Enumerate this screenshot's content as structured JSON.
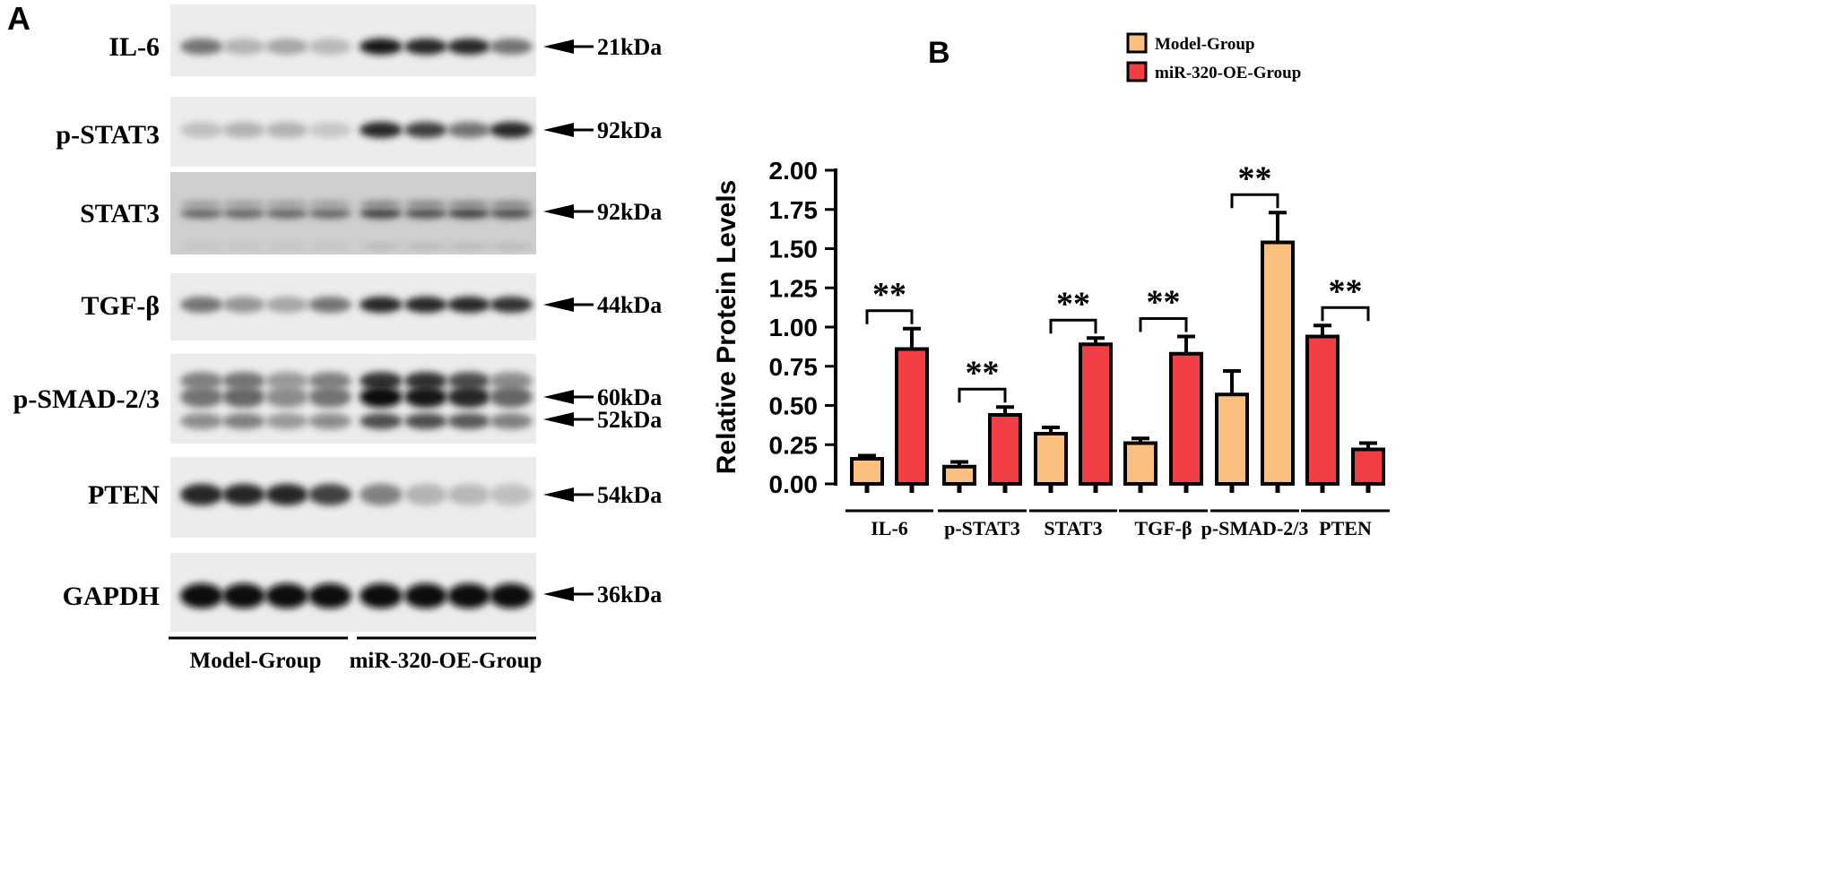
{
  "panel_a": {
    "label": "A",
    "blots": [
      {
        "name": "IL-6",
        "markers": [
          "21kDa"
        ]
      },
      {
        "name": "p-STAT3",
        "markers": [
          "92kDa"
        ]
      },
      {
        "name": "STAT3",
        "markers": [
          "92kDa"
        ]
      },
      {
        "name": "TGF-β",
        "markers": [
          "44kDa"
        ]
      },
      {
        "name": "p-SMAD-2/3",
        "markers": [
          "60kDa",
          "52kDa"
        ]
      },
      {
        "name": "PTEN",
        "markers": [
          "54kDa"
        ]
      },
      {
        "name": "GAPDH",
        "markers": [
          "36kDa"
        ]
      }
    ],
    "groups": [
      "Model-Group",
      "miR-320-OE-Group"
    ]
  },
  "panel_b": {
    "label": "B"
  },
  "chart_data": {
    "type": "bar",
    "title": "",
    "xlabel": "",
    "ylabel": "Relative Protein Levels",
    "ylim": [
      0,
      2.0
    ],
    "yticks": [
      "0.00",
      "0.25",
      "0.50",
      "0.75",
      "1.00",
      "1.25",
      "1.50",
      "1.75",
      "2.00"
    ],
    "grid": false,
    "legend_position": "top-right",
    "series_legend": [
      {
        "name": "Model-Group",
        "color": "#FBBF7F"
      },
      {
        "name": "miR-320-OE-Group",
        "color": "#F13F45"
      }
    ],
    "groups": [
      {
        "label": "IL-6",
        "bars": [
          {
            "series": "Model-Group",
            "value": 0.16,
            "error": 0.02
          },
          {
            "series": "miR-320-OE-Group",
            "value": 0.86,
            "error": 0.13
          }
        ],
        "significance": "**"
      },
      {
        "label": "p-STAT3",
        "bars": [
          {
            "series": "Model-Group",
            "value": 0.11,
            "error": 0.03
          },
          {
            "series": "miR-320-OE-Group",
            "value": 0.44,
            "error": 0.05
          }
        ],
        "significance": "**"
      },
      {
        "label": "STAT3",
        "bars": [
          {
            "series": "Model-Group",
            "value": 0.32,
            "error": 0.04
          },
          {
            "series": "miR-320-OE-Group",
            "value": 0.89,
            "error": 0.04
          }
        ],
        "significance": "**"
      },
      {
        "label": "TGF-β",
        "bars": [
          {
            "series": "Model-Group",
            "value": 0.26,
            "error": 0.03
          },
          {
            "series": "miR-320-OE-Group",
            "value": 0.83,
            "error": 0.11
          }
        ],
        "significance": "**"
      },
      {
        "label": "p-SMAD-2/3",
        "bars": [
          {
            "series": "Model-Group",
            "value": 0.57,
            "error": 0.15
          },
          {
            "series": "miR-320-OE-Group",
            "value": 1.54,
            "error": 0.19,
            "color": "#FBBF7F"
          }
        ],
        "significance": "**"
      },
      {
        "label": "PTEN",
        "bars": [
          {
            "series": "Model-Group",
            "value": 0.94,
            "error": 0.07,
            "color": "#F13F45"
          },
          {
            "series": "miR-320-OE-Group",
            "value": 0.22,
            "error": 0.04
          }
        ],
        "significance": "**"
      }
    ]
  }
}
